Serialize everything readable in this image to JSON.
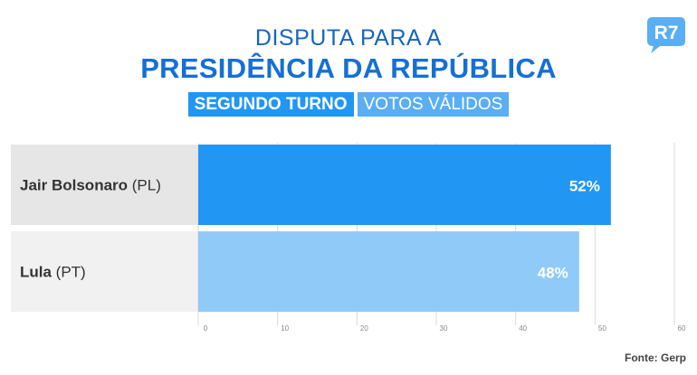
{
  "header": {
    "title_line1": "DISPUTA PARA A",
    "title_line2": "PRESIDÊNCIA DA REPÚBLICA",
    "tag_round": "SEGUNDO TURNO",
    "tag_votes": "VOTOS VÁLIDOS"
  },
  "logo": {
    "text": "R7",
    "color": "#5aaef3"
  },
  "source": "Fonte: Gerp",
  "chart_data": {
    "type": "bar",
    "orientation": "horizontal",
    "categories": [
      {
        "name": "Jair Bolsonaro",
        "party": "(PL)"
      },
      {
        "name": "Lula",
        "party": "(PT)"
      }
    ],
    "values": [
      52,
      48
    ],
    "value_labels": [
      "52%",
      "48%"
    ],
    "colors": [
      "#2196f3",
      "#90caf9"
    ],
    "xlim": [
      0,
      60
    ],
    "ticks": [
      0,
      10,
      20,
      30,
      40,
      50,
      60
    ],
    "grid": true
  }
}
